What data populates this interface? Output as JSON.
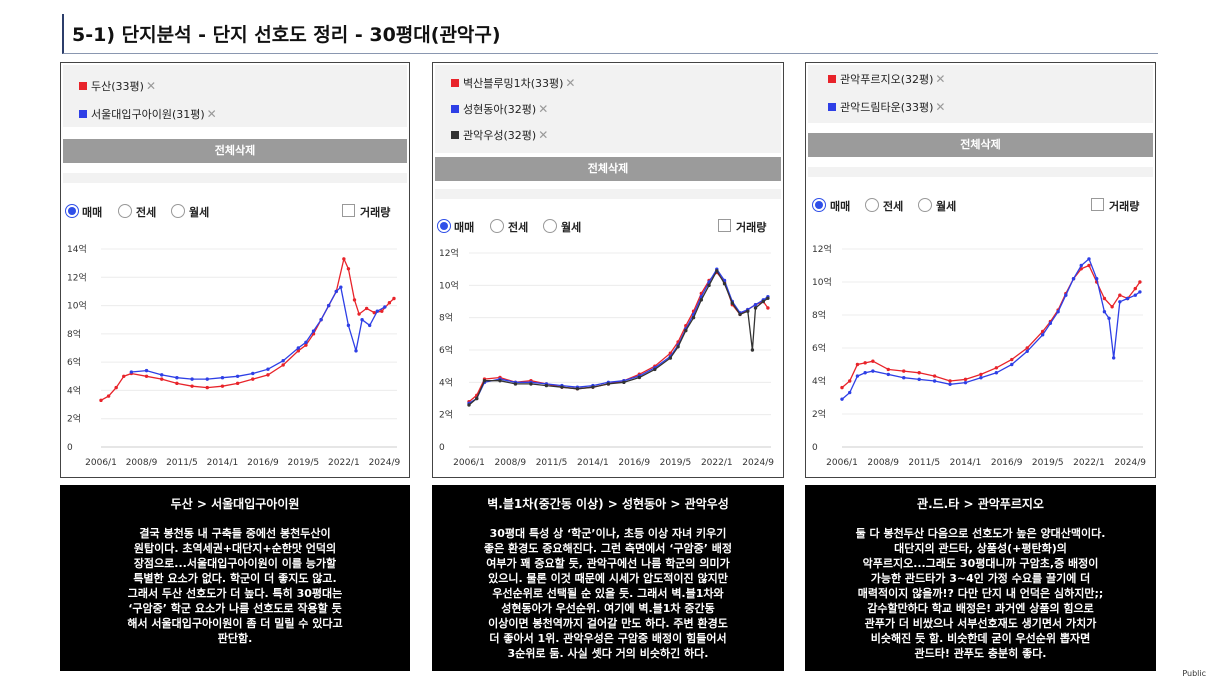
{
  "header": {
    "title": "5-1) 단지분석 - 단지 선호도 정리 - 30평대(관악구)"
  },
  "common": {
    "delete_all": "전체삭제",
    "radio_options": [
      "매매",
      "전세",
      "월세"
    ],
    "volume_label": "거래량",
    "remove_glyph": "✕"
  },
  "footer": {
    "public_label": "Public"
  },
  "colors": {
    "red": "#e8232a",
    "blue": "#2e3fe6",
    "dark": "#333333"
  },
  "panels": [
    {
      "legend": [
        {
          "label": "두산(33평)",
          "color": "#e8232a"
        },
        {
          "label": "서울대입구아이원(31평)",
          "color": "#2e3fe6"
        }
      ],
      "desc_title": "두산 > 서울대입구아이원",
      "desc_text": "결국 봉천동 내 구축들 중에선 봉천두산이\n원탑이다. 초역세권+대단지+순한맛 언덕의\n장점으로...서울대입구아이원이 이를 능가할\n특별한 요소가 없다. 학군이 더 좋지도 않고.\n그래서 두산 선호도가 더 높다. 특히 30평대는\n‘구암중’ 학군 요소가 나름 선호도로 작용할 듯\n해서 서울대입구아이원이 좀 더 밀릴 수 있다고\n판단함."
    },
    {
      "legend": [
        {
          "label": "벽산블루밍1차(33평)",
          "color": "#e8232a"
        },
        {
          "label": "성현동아(32평)",
          "color": "#2e3fe6"
        },
        {
          "label": "관악우성(32평)",
          "color": "#333333"
        }
      ],
      "desc_title": "벽.블1차(중간동 이상) > 성현동아 > 관악우성",
      "desc_text": "30평대 특성 상 ‘학군’이나, 초등 이상 자녀 키우기\n좋은 환경도 중요해진다. 그런 측면에서 ‘구암중’ 배정\n여부가 꽤 중요할 듯, 관악구에선 나름 학군의 의미가\n있으니. 물론 이것 때문에 시세가 압도적이진 않지만\n우선순위로 선택될 순 있을 듯. 그래서 벽.블1차와\n성현동아가 우선순위. 여기에 벽.블1차 중간동\n이상이면 봉천역까지 걸어갈 만도 하다. 주변 환경도\n더 좋아서 1위. 관악우성은 구암중 배정이 힘들어서\n3순위로 둠. 사실 셋다 거의 비슷하긴 하다."
    },
    {
      "legend": [
        {
          "label": "관악푸르지오(32평)",
          "color": "#e8232a"
        },
        {
          "label": "관악드림타운(33평)",
          "color": "#2e3fe6"
        }
      ],
      "desc_title": "관.드.타 > 관악푸르지오",
      "desc_text": "둘 다 봉천두산 다음으로 선호도가 높은 양대산맥이다.\n대단지의 관드타, 상품성(+평탄화)의\n악푸르지오...그래도 30평대니까 구암초,중 배정이\n가능한 관드타가 3~4인 가정 수요를 끌기에 더\n매력적이지 않을까!? 다만 단지 내 언덕은 심하지만;;\n감수할만하다 학교 배정은! 과거엔 상품의 힘으로\n관푸가 더 비쌌으나 서부선호재도 생기면서 가치가\n비슷해진 듯 함. 비슷한데 굳이 우선순위 뽑자면\n관드타! 관푸도 충분히 좋다."
    }
  ],
  "chart_data": [
    {
      "type": "line",
      "ylim": [
        0,
        14
      ],
      "y_ticks": [
        "0",
        "2억",
        "4억",
        "6억",
        "8억",
        "10억",
        "12억",
        "14억"
      ],
      "y_tick_values": [
        0,
        2,
        4,
        6,
        8,
        10,
        12,
        14
      ],
      "x_ticks": [
        "2006/1",
        "2008/9",
        "2011/5",
        "2014/1",
        "2016/9",
        "2019/5",
        "2022/1",
        "2024/9"
      ],
      "x_tick_values": [
        2006.0,
        2008.67,
        2011.33,
        2014.0,
        2016.67,
        2019.33,
        2022.0,
        2024.67
      ],
      "xlim": [
        2006.0,
        2025.5
      ],
      "series": [
        {
          "name": "두산(33평)",
          "color": "#e8232a",
          "x": [
            2006.0,
            2006.5,
            2007.0,
            2007.5,
            2008.0,
            2009.0,
            2010.0,
            2011.0,
            2012.0,
            2013.0,
            2014.0,
            2015.0,
            2016.0,
            2017.0,
            2018.0,
            2019.0,
            2019.5,
            2020.0,
            2020.5,
            2021.0,
            2021.5,
            2022.0,
            2022.3,
            2022.7,
            2023.0,
            2023.5,
            2024.0,
            2024.5,
            2025.0,
            2025.3
          ],
          "y": [
            3.3,
            3.6,
            4.2,
            5.0,
            5.2,
            5.0,
            4.8,
            4.5,
            4.3,
            4.2,
            4.3,
            4.5,
            4.8,
            5.1,
            5.8,
            6.8,
            7.2,
            8.0,
            9.0,
            10.0,
            11.0,
            13.3,
            12.6,
            10.4,
            9.4,
            9.8,
            9.5,
            9.6,
            10.2,
            10.5
          ]
        },
        {
          "name": "서울대입구아이원(31평)",
          "color": "#2e3fe6",
          "x": [
            2008.0,
            2009.0,
            2010.0,
            2011.0,
            2012.0,
            2013.0,
            2014.0,
            2015.0,
            2016.0,
            2017.0,
            2018.0,
            2019.0,
            2019.5,
            2020.0,
            2020.5,
            2021.0,
            2021.5,
            2021.8,
            2022.3,
            2022.8,
            2023.2,
            2023.7,
            2024.2,
            2024.7
          ],
          "y": [
            5.3,
            5.4,
            5.1,
            4.9,
            4.8,
            4.8,
            4.9,
            5.0,
            5.2,
            5.5,
            6.1,
            7.0,
            7.4,
            8.2,
            9.0,
            10.0,
            11.0,
            11.3,
            8.6,
            6.8,
            9.0,
            8.6,
            9.6,
            9.9
          ]
        }
      ]
    },
    {
      "type": "line",
      "ylim": [
        0,
        12
      ],
      "y_ticks": [
        "0",
        "2억",
        "4억",
        "6억",
        "8억",
        "10억",
        "12억"
      ],
      "y_tick_values": [
        0,
        2,
        4,
        6,
        8,
        10,
        12
      ],
      "x_ticks": [
        "2006/1",
        "2008/9",
        "2011/5",
        "2014/1",
        "2016/9",
        "2019/5",
        "2022/1",
        "2024/9"
      ],
      "x_tick_values": [
        2006.0,
        2008.67,
        2011.33,
        2014.0,
        2016.67,
        2019.33,
        2022.0,
        2024.67
      ],
      "xlim": [
        2006.0,
        2025.5
      ],
      "series": [
        {
          "name": "벽산블루밍1차(33평)",
          "color": "#e8232a",
          "x": [
            2006.0,
            2006.5,
            2007.0,
            2008.0,
            2009.0,
            2010.0,
            2011.0,
            2012.0,
            2013.0,
            2014.0,
            2015.0,
            2016.0,
            2017.0,
            2018.0,
            2019.0,
            2019.5,
            2020.0,
            2020.5,
            2021.0,
            2021.5,
            2022.0,
            2022.5,
            2023.0,
            2023.5,
            2024.0,
            2024.5,
            2025.0,
            2025.3
          ],
          "y": [
            2.8,
            3.2,
            4.2,
            4.3,
            4.0,
            4.1,
            3.9,
            3.7,
            3.6,
            3.7,
            3.9,
            4.1,
            4.5,
            5.0,
            5.8,
            6.5,
            7.5,
            8.4,
            9.5,
            10.3,
            10.8,
            10.2,
            8.8,
            8.2,
            8.5,
            8.8,
            9.0,
            8.6
          ]
        },
        {
          "name": "성현동아(32평)",
          "color": "#2e3fe6",
          "x": [
            2006.0,
            2006.5,
            2007.0,
            2008.0,
            2009.0,
            2010.0,
            2011.0,
            2012.0,
            2013.0,
            2014.0,
            2015.0,
            2016.0,
            2017.0,
            2018.0,
            2019.0,
            2019.5,
            2020.0,
            2020.5,
            2021.0,
            2021.5,
            2022.0,
            2022.5,
            2023.0,
            2023.5,
            2024.0,
            2024.5,
            2025.0,
            2025.3
          ],
          "y": [
            2.7,
            3.0,
            4.0,
            4.2,
            4.0,
            4.0,
            3.9,
            3.8,
            3.7,
            3.8,
            4.0,
            4.1,
            4.4,
            4.9,
            5.6,
            6.3,
            7.3,
            8.2,
            9.3,
            10.2,
            11.0,
            10.3,
            9.0,
            8.3,
            8.5,
            8.8,
            9.1,
            9.3
          ]
        },
        {
          "name": "관악우성(32평)",
          "color": "#333333",
          "x": [
            2006.0,
            2006.5,
            2007.0,
            2008.0,
            2009.0,
            2010.0,
            2011.0,
            2012.0,
            2013.0,
            2014.0,
            2015.0,
            2016.0,
            2017.0,
            2018.0,
            2019.0,
            2019.5,
            2020.0,
            2020.5,
            2021.0,
            2021.5,
            2022.0,
            2022.5,
            2023.0,
            2023.5,
            2024.0,
            2024.3,
            2024.5,
            2025.0,
            2025.3
          ],
          "y": [
            2.6,
            3.0,
            4.1,
            4.1,
            3.9,
            3.9,
            3.8,
            3.7,
            3.6,
            3.7,
            3.9,
            4.0,
            4.3,
            4.8,
            5.5,
            6.2,
            7.2,
            8.0,
            9.1,
            10.0,
            10.9,
            10.1,
            8.9,
            8.2,
            8.4,
            6.0,
            8.6,
            9.0,
            9.2
          ]
        }
      ]
    },
    {
      "type": "line",
      "ylim": [
        0,
        12
      ],
      "y_ticks": [
        "0",
        "2억",
        "4억",
        "6억",
        "8억",
        "10억",
        "12억"
      ],
      "y_tick_values": [
        0,
        2,
        4,
        6,
        8,
        10,
        12
      ],
      "x_ticks": [
        "2006/1",
        "2008/9",
        "2011/5",
        "2014/1",
        "2016/9",
        "2019/5",
        "2022/1",
        "2024/9"
      ],
      "x_tick_values": [
        2006.0,
        2008.67,
        2011.33,
        2014.0,
        2016.67,
        2019.33,
        2022.0,
        2024.67
      ],
      "xlim": [
        2006.0,
        2025.5
      ],
      "series": [
        {
          "name": "관악푸르지오(32평)",
          "color": "#e8232a",
          "x": [
            2006.0,
            2006.5,
            2007.0,
            2007.5,
            2008.0,
            2009.0,
            2010.0,
            2011.0,
            2012.0,
            2013.0,
            2014.0,
            2015.0,
            2016.0,
            2017.0,
            2018.0,
            2019.0,
            2019.5,
            2020.0,
            2020.5,
            2021.0,
            2021.5,
            2022.0,
            2022.5,
            2023.0,
            2023.5,
            2024.0,
            2024.5,
            2025.0,
            2025.3
          ],
          "y": [
            3.6,
            4.0,
            5.0,
            5.1,
            5.2,
            4.7,
            4.6,
            4.5,
            4.3,
            4.0,
            4.1,
            4.4,
            4.8,
            5.3,
            6.0,
            7.0,
            7.6,
            8.3,
            9.3,
            10.2,
            10.8,
            11.0,
            10.0,
            9.0,
            8.5,
            9.2,
            9.0,
            9.6,
            10.0
          ]
        },
        {
          "name": "관악드림타운(33평)",
          "color": "#2e3fe6",
          "x": [
            2006.0,
            2006.5,
            2007.0,
            2007.5,
            2008.0,
            2009.0,
            2010.0,
            2011.0,
            2012.0,
            2013.0,
            2014.0,
            2015.0,
            2016.0,
            2017.0,
            2018.0,
            2019.0,
            2019.5,
            2020.0,
            2020.5,
            2021.0,
            2021.5,
            2022.0,
            2022.5,
            2023.0,
            2023.3,
            2023.6,
            2024.0,
            2024.5,
            2025.0,
            2025.3
          ],
          "y": [
            2.9,
            3.3,
            4.3,
            4.5,
            4.6,
            4.4,
            4.2,
            4.1,
            4.0,
            3.8,
            3.9,
            4.2,
            4.5,
            5.0,
            5.8,
            6.8,
            7.5,
            8.2,
            9.2,
            10.2,
            11.0,
            11.4,
            10.2,
            8.2,
            7.8,
            5.4,
            8.8,
            9.0,
            9.2,
            9.4
          ]
        }
      ]
    }
  ]
}
